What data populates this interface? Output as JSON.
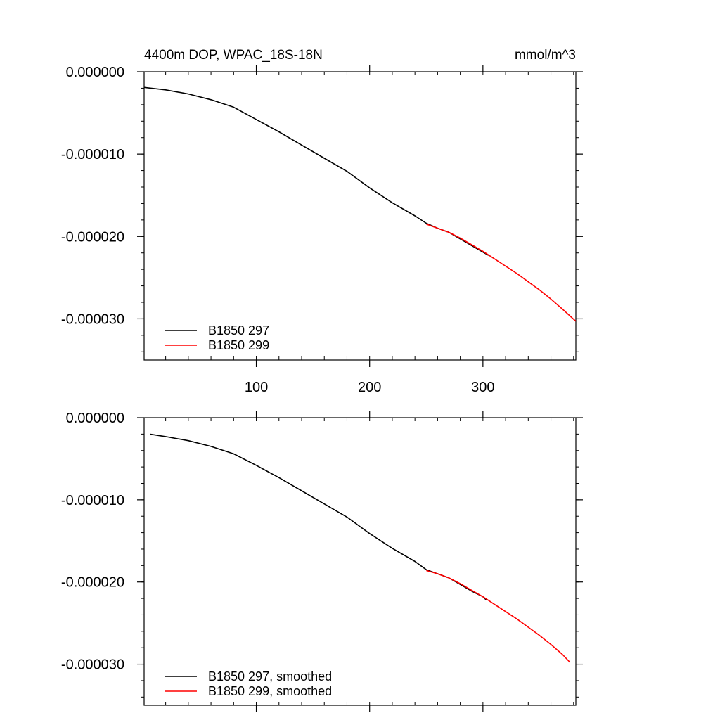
{
  "chart_data": [
    {
      "type": "line",
      "title": "4400m DOP, WPAC_18S-18N",
      "units": "mmol/m^3",
      "xlim": [
        1,
        382
      ],
      "ylim": [
        -3.5e-05,
        0.0
      ],
      "x_ticks": [
        {
          "value": 100,
          "label": "100"
        },
        {
          "value": 200,
          "label": "200"
        },
        {
          "value": 300,
          "label": "300"
        }
      ],
      "y_ticks": [
        {
          "value": 0.0,
          "label": "0.000000"
        },
        {
          "value": -1e-05,
          "label": "-0.000010"
        },
        {
          "value": -2e-05,
          "label": "-0.000020"
        },
        {
          "value": -3e-05,
          "label": "-0.000030"
        }
      ],
      "legend_position": "bottom-left",
      "series": [
        {
          "name": "B1850 297",
          "color": "#000000",
          "x": [
            1,
            20,
            40,
            60,
            80,
            100,
            120,
            140,
            160,
            180,
            200,
            220,
            240,
            250,
            260,
            270,
            280,
            290,
            300,
            305
          ],
          "y": [
            -1.9e-06,
            -2.2e-06,
            -2.7e-06,
            -3.4e-06,
            -4.3e-06,
            -5.8e-06,
            -7.3e-06,
            -8.9e-06,
            -1.05e-05,
            -1.21e-05,
            -1.41e-05,
            -1.59e-05,
            -1.75e-05,
            -1.84e-05,
            -1.9e-05,
            -1.95e-05,
            -2.03e-05,
            -2.11e-05,
            -2.19e-05,
            -2.23e-05
          ]
        },
        {
          "name": "B1850 299",
          "color": "#ff0000",
          "x": [
            250,
            260,
            270,
            280,
            290,
            300,
            310,
            320,
            330,
            340,
            350,
            360,
            370,
            382
          ],
          "y": [
            -1.85e-05,
            -1.9e-05,
            -1.95e-05,
            -2.02e-05,
            -2.1e-05,
            -2.18e-05,
            -2.27e-05,
            -2.36e-05,
            -2.45e-05,
            -2.55e-05,
            -2.65e-05,
            -2.76e-05,
            -2.88e-05,
            -3.03e-05
          ]
        }
      ]
    },
    {
      "type": "line",
      "title": "",
      "xlim": [
        1,
        382
      ],
      "ylim": [
        -3.5e-05,
        0.0
      ],
      "x_ticks": [
        {
          "value": 100,
          "label": ""
        },
        {
          "value": 200,
          "label": ""
        },
        {
          "value": 300,
          "label": ""
        }
      ],
      "y_ticks": [
        {
          "value": 0.0,
          "label": "0.000000"
        },
        {
          "value": -1e-05,
          "label": "-0.000010"
        },
        {
          "value": -2e-05,
          "label": "-0.000020"
        },
        {
          "value": -3e-05,
          "label": "-0.000030"
        }
      ],
      "legend_position": "bottom-left",
      "series": [
        {
          "name": "B1850 297, smoothed",
          "color": "#000000",
          "x": [
            6,
            20,
            40,
            60,
            80,
            100,
            120,
            140,
            160,
            180,
            200,
            220,
            240,
            250,
            260,
            270,
            280,
            290,
            300,
            303
          ],
          "y": [
            -2e-06,
            -2.3e-06,
            -2.8e-06,
            -3.5e-06,
            -4.4e-06,
            -5.8e-06,
            -7.3e-06,
            -8.9e-06,
            -1.05e-05,
            -1.21e-05,
            -1.41e-05,
            -1.59e-05,
            -1.75e-05,
            -1.85e-05,
            -1.9e-05,
            -1.95e-05,
            -2.03e-05,
            -2.11e-05,
            -2.18e-05,
            -2.22e-05
          ]
        },
        {
          "name": "B1850 299, smoothed",
          "color": "#ff0000",
          "x": [
            250,
            260,
            270,
            280,
            290,
            300,
            310,
            320,
            330,
            340,
            350,
            360,
            370,
            377
          ],
          "y": [
            -1.86e-05,
            -1.9e-05,
            -1.95e-05,
            -2.02e-05,
            -2.1e-05,
            -2.18e-05,
            -2.27e-05,
            -2.36e-05,
            -2.45e-05,
            -2.55e-05,
            -2.65e-05,
            -2.76e-05,
            -2.88e-05,
            -2.98e-05
          ]
        }
      ]
    }
  ]
}
